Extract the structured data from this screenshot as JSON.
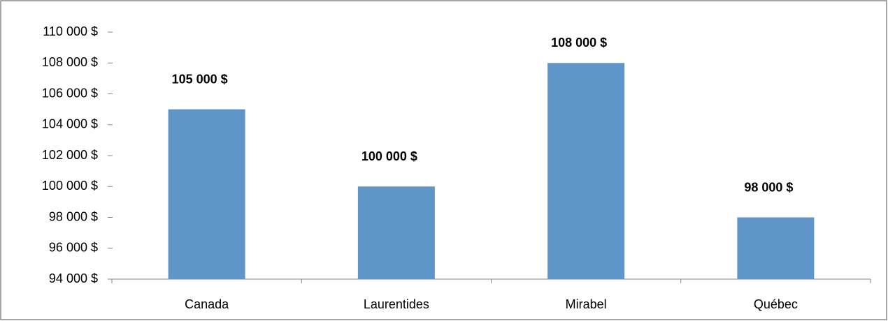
{
  "chart_data": {
    "type": "bar",
    "categories": [
      "Canada",
      "Laurentides",
      "Mirabel",
      "Québec"
    ],
    "values": [
      105000,
      100000,
      108000,
      98000
    ],
    "value_labels": [
      "105 000 $",
      "100 000 $",
      "108 000 $",
      "98 000 $"
    ],
    "color": "#5f95c9",
    "ylim": [
      94000,
      110000
    ],
    "yticks": [
      {
        "value": 94000,
        "label": "94 000  $"
      },
      {
        "value": 96000,
        "label": "96 000  $"
      },
      {
        "value": 98000,
        "label": "98 000  $"
      },
      {
        "value": 100000,
        "label": "100 000  $"
      },
      {
        "value": 102000,
        "label": "102 000  $"
      },
      {
        "value": 104000,
        "label": "104 000  $"
      },
      {
        "value": 106000,
        "label": "106 000  $"
      },
      {
        "value": 108000,
        "label": "108 000  $"
      },
      {
        "value": 110000,
        "label": "110 000 $"
      }
    ],
    "grid": false
  }
}
